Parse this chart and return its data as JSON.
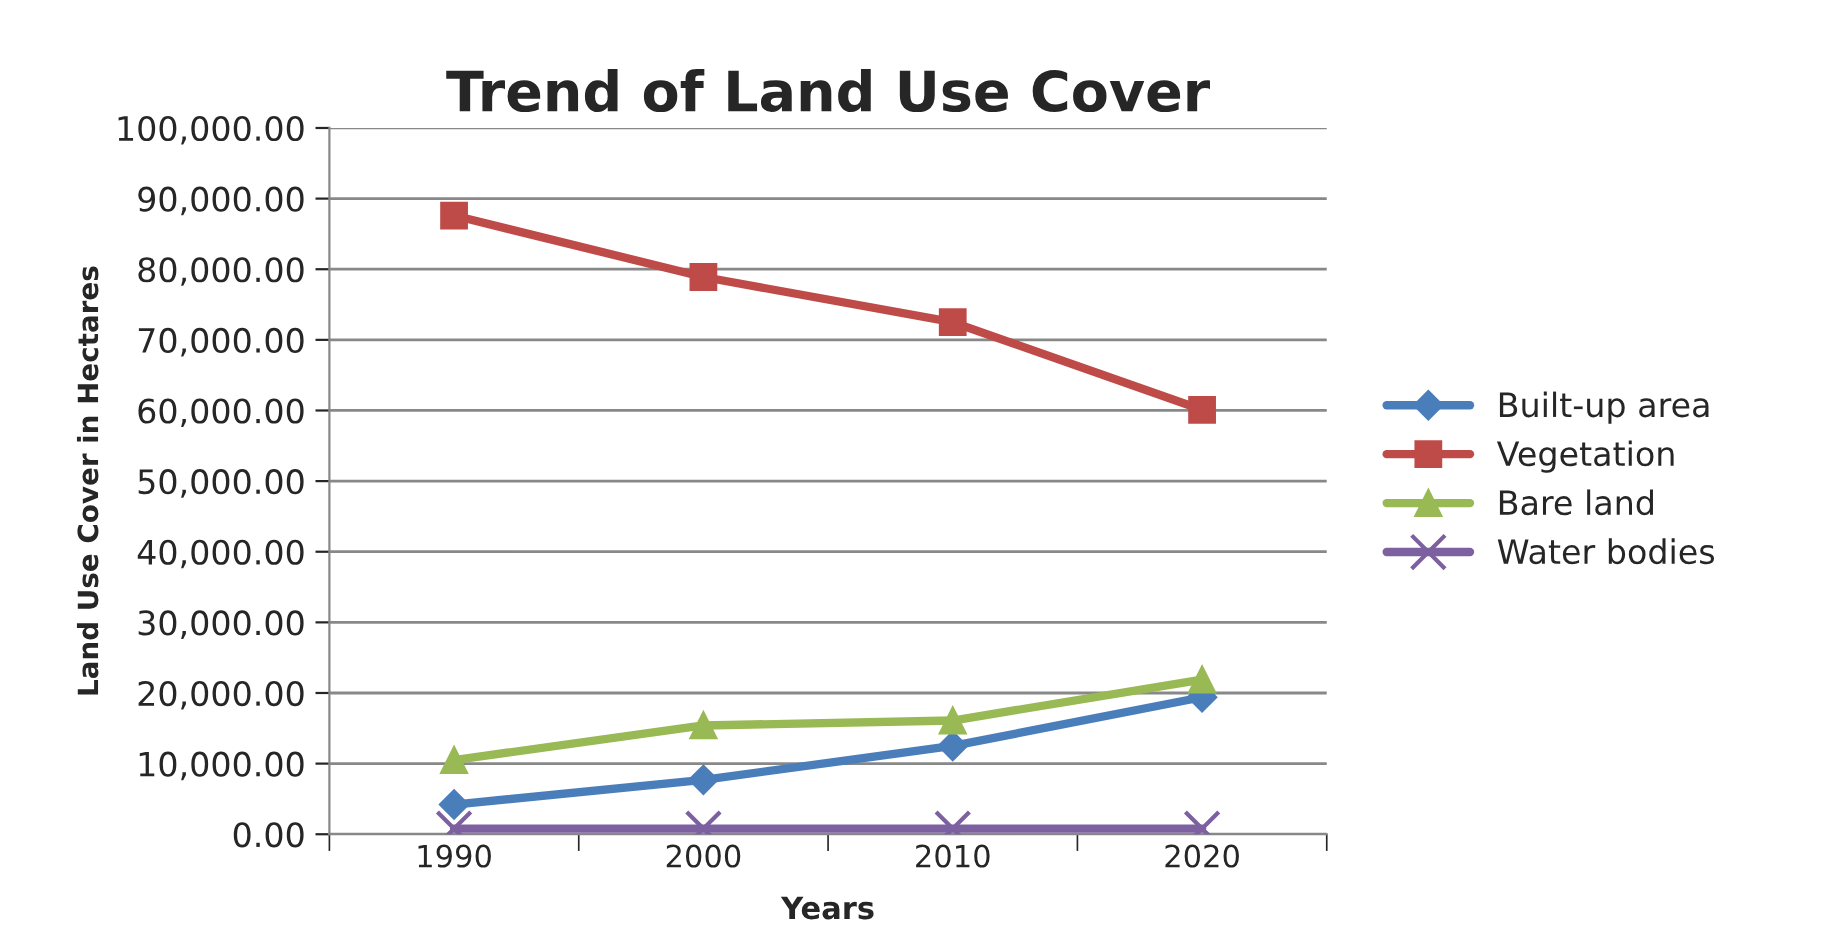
{
  "chart_data": {
    "type": "line",
    "title": "Trend of Land Use Cover",
    "xlabel": "Years",
    "ylabel": "Land Use Cover in Hectares",
    "categories": [
      "1990",
      "2000",
      "2010",
      "2020"
    ],
    "series": [
      {
        "name": "Built-up area",
        "color": "#4a7ebb",
        "marker": "diamond",
        "values": [
          4200,
          7700,
          12500,
          19400
        ]
      },
      {
        "name": "Vegetation",
        "color": "#be4b48",
        "marker": "square",
        "values": [
          87600,
          78900,
          72500,
          60100
        ]
      },
      {
        "name": "Bare land",
        "color": "#98b954",
        "marker": "triangle",
        "values": [
          10500,
          15400,
          16100,
          21900
        ]
      },
      {
        "name": "Water bodies",
        "color": "#7d60a0",
        "marker": "cross",
        "values": [
          800,
          800,
          800,
          800
        ]
      }
    ],
    "ylim": [
      0,
      100000
    ],
    "yticks": [
      {
        "value": 0,
        "label": "0.00"
      },
      {
        "value": 10000,
        "label": "10,000.00"
      },
      {
        "value": 20000,
        "label": "20,000.00"
      },
      {
        "value": 30000,
        "label": "30,000.00"
      },
      {
        "value": 40000,
        "label": "40,000.00"
      },
      {
        "value": 50000,
        "label": "50,000.00"
      },
      {
        "value": 60000,
        "label": "60,000.00"
      },
      {
        "value": 70000,
        "label": "70,000.00"
      },
      {
        "value": 80000,
        "label": "80,000.00"
      },
      {
        "value": 90000,
        "label": "90,000.00"
      },
      {
        "value": 100000,
        "label": "100,000.00"
      }
    ],
    "grid": "y",
    "legend": "right",
    "line_style": "solid"
  }
}
